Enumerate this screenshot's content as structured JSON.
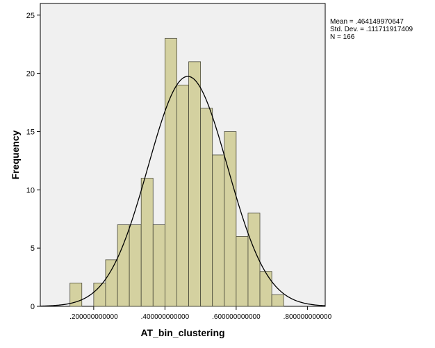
{
  "chart_data": {
    "type": "histogram",
    "xlabel": "AT_bin_clustering",
    "ylabel": "Frequency",
    "xlim": [
      0.05,
      0.85
    ],
    "ylim": [
      0,
      26
    ],
    "x_ticks": [
      0.2,
      0.4,
      0.6,
      0.8
    ],
    "x_tick_labels": [
      ".200000000000",
      ".400000000000",
      ".600000000000",
      ".800000000000"
    ],
    "y_ticks": [
      0,
      5,
      10,
      15,
      20,
      25
    ],
    "y_tick_labels": [
      "0",
      "5",
      "10",
      "15",
      "20",
      "25"
    ],
    "bin_width": 0.0333,
    "bins": [
      {
        "x0": 0.1333,
        "value": 2
      },
      {
        "x0": 0.2,
        "value": 2
      },
      {
        "x0": 0.2333,
        "value": 4
      },
      {
        "x0": 0.2667,
        "value": 7
      },
      {
        "x0": 0.3,
        "value": 7
      },
      {
        "x0": 0.3333,
        "value": 11
      },
      {
        "x0": 0.3667,
        "value": 7
      },
      {
        "x0": 0.4,
        "value": 23
      },
      {
        "x0": 0.4333,
        "value": 19
      },
      {
        "x0": 0.4667,
        "value": 21
      },
      {
        "x0": 0.5,
        "value": 17
      },
      {
        "x0": 0.5333,
        "value": 13
      },
      {
        "x0": 0.5667,
        "value": 15
      },
      {
        "x0": 0.6,
        "value": 6
      },
      {
        "x0": 0.6333,
        "value": 8
      },
      {
        "x0": 0.6667,
        "value": 3
      },
      {
        "x0": 0.7,
        "value": 1
      }
    ],
    "normal_curve": {
      "mean": 0.464149970647,
      "sd": 0.111711917409,
      "n": 166
    },
    "colors": {
      "plot_background": "#f0f0f0",
      "bar_fill": "#d4d1a0",
      "bar_stroke": "#4a4a3a",
      "curve": "#000000"
    }
  },
  "stats": {
    "mean_line": "Mean = .464149970647",
    "sd_line": "Std. Dev. = .111711917409",
    "n_line": "N = 166"
  }
}
